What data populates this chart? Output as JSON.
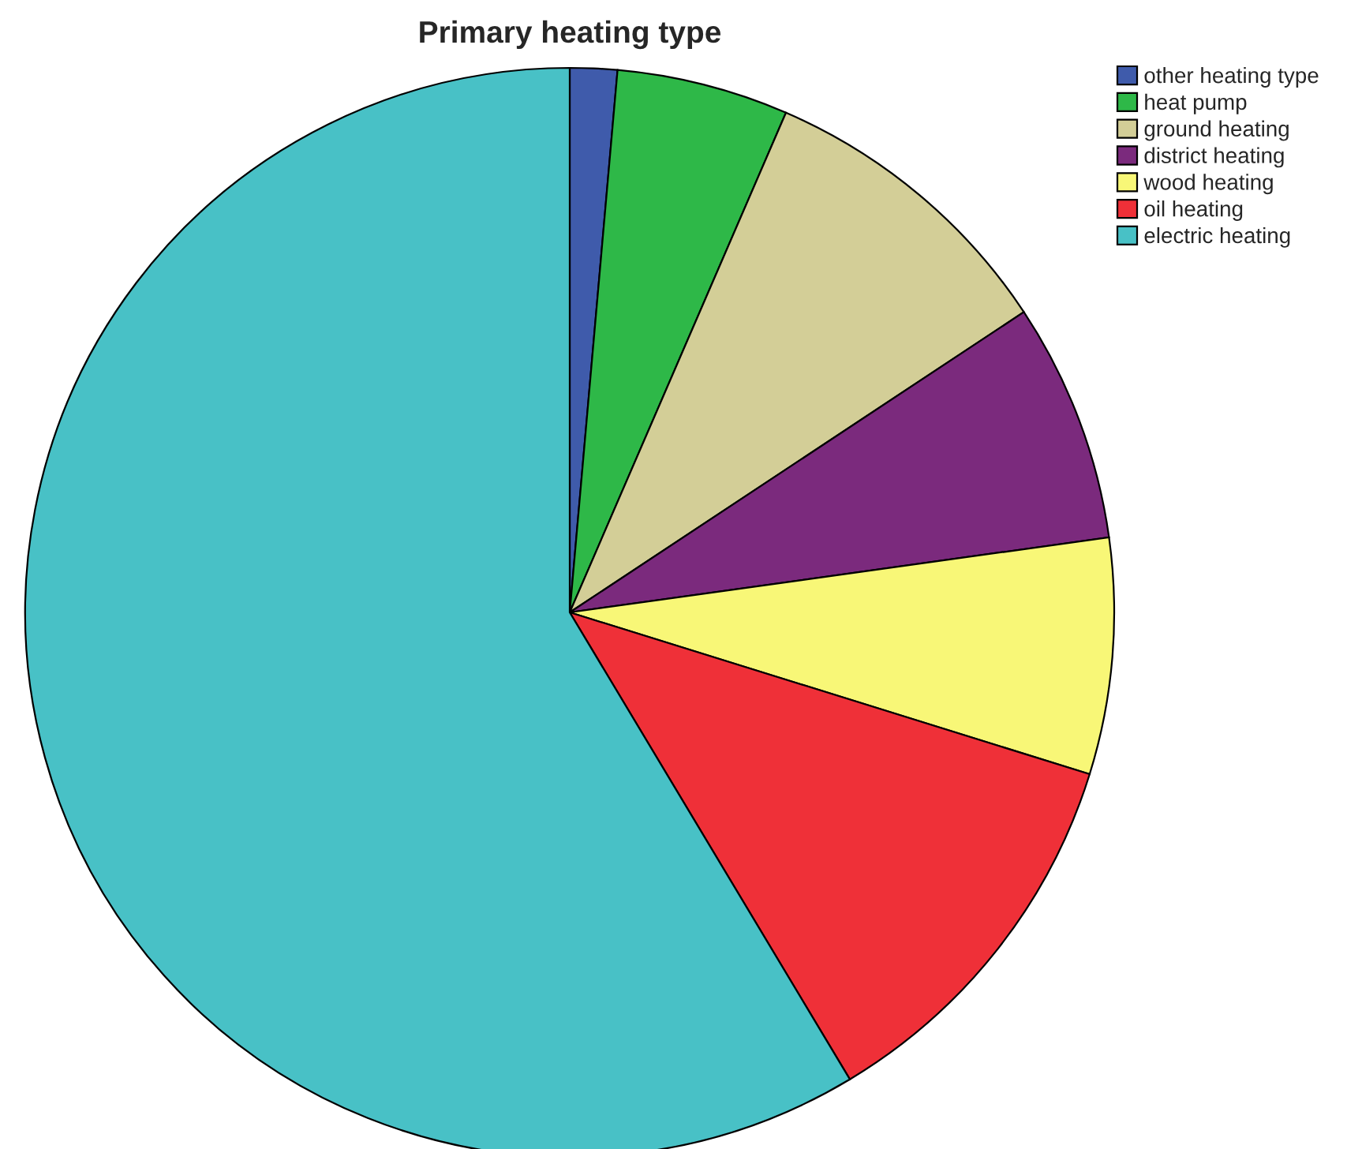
{
  "chart_data": {
    "type": "pie",
    "title": "Primary heating type",
    "categories": [
      "other heating type",
      "heat pump",
      "ground heating",
      "district heating",
      "wood heating",
      "oil heating",
      "electric heating"
    ],
    "values": [
      1.4,
      5.1,
      9.2,
      7.1,
      7.0,
      11.6,
      58.6
    ],
    "colors": [
      "#3f5bab",
      "#2eb848",
      "#d3ce97",
      "#7b2a7d",
      "#f8f777",
      "#ef3038",
      "#48c1c6"
    ],
    "legend": "top right"
  }
}
